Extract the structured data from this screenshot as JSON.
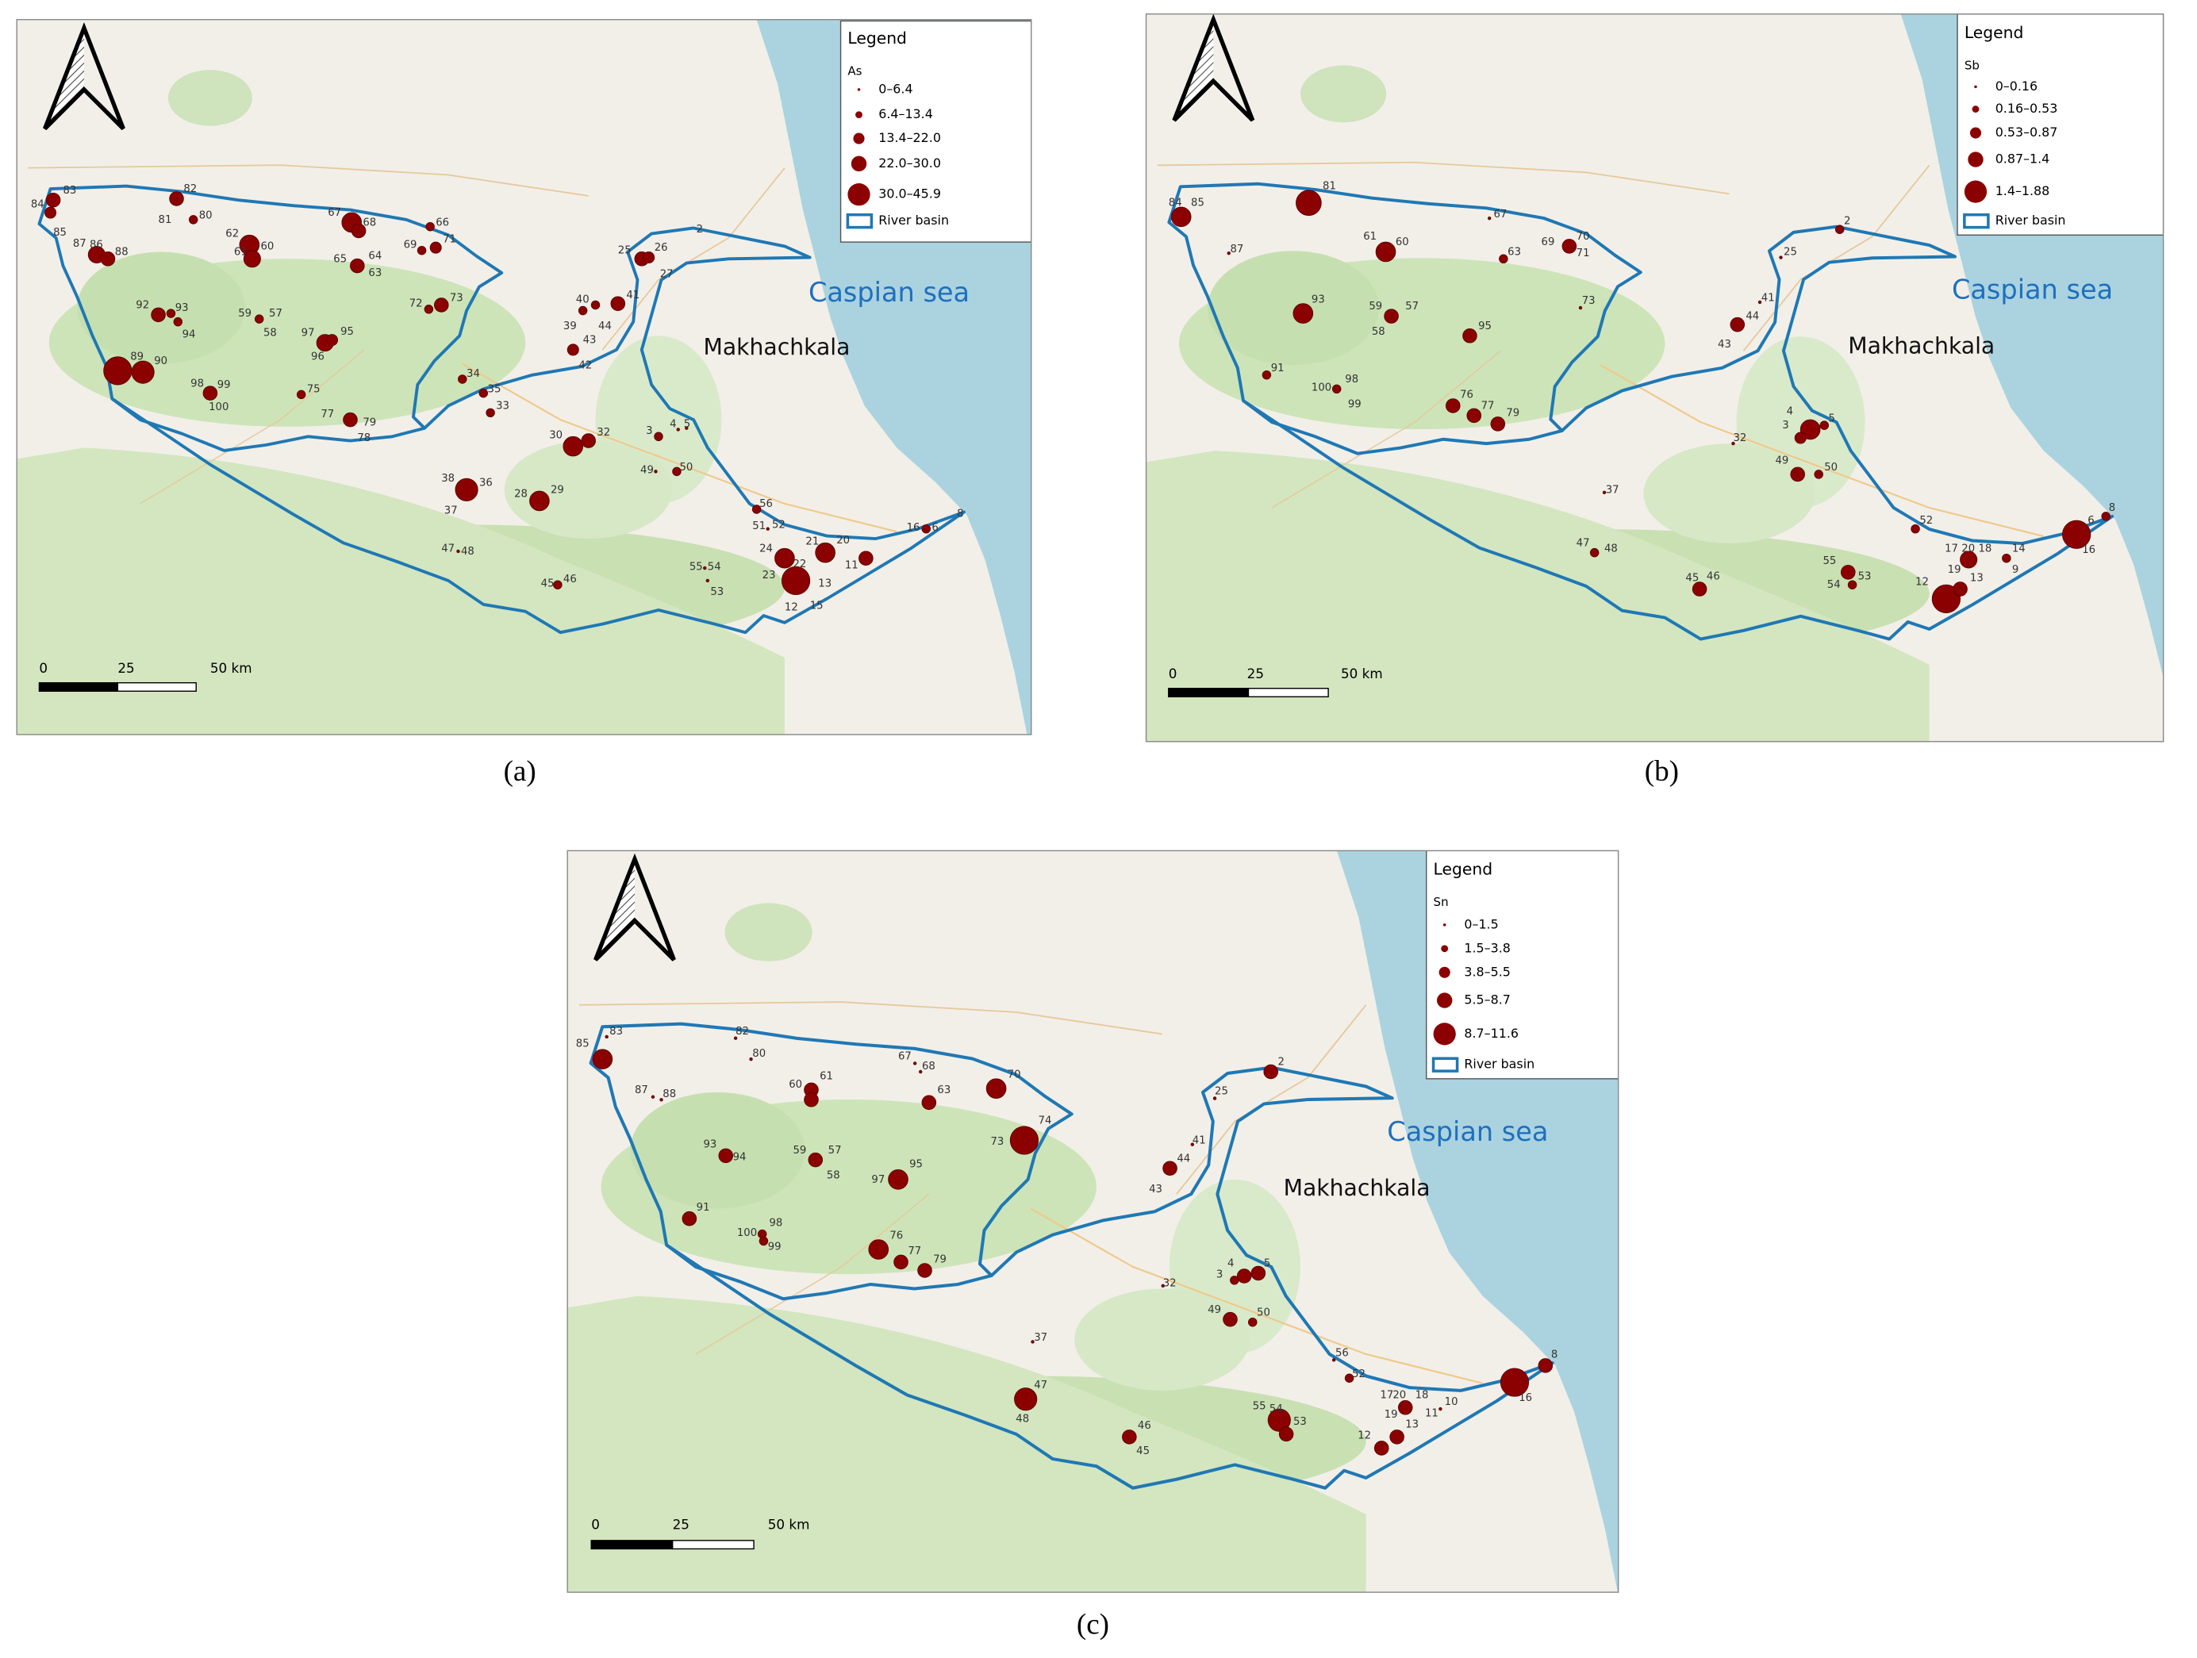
{
  "panels": [
    {
      "caption": "(a)",
      "legend": {
        "title": "Legend",
        "variable": "As",
        "classes": [
          "0–6.4",
          "6.4–13.4",
          "13.4–22.0",
          "22.0–30.0",
          "30.0–45.9"
        ],
        "basin": "River basin"
      },
      "sea_label": "Caspian sea",
      "city_label": "Makhachkala",
      "scale": [
        "0",
        "25",
        "50 km"
      ],
      "points": [
        "84",
        "83",
        "85",
        "86",
        "87",
        "88",
        "82",
        "81",
        "80",
        "62",
        "61",
        "60",
        "67",
        "68",
        "65",
        "64",
        "63",
        "66",
        "69",
        "71",
        "72",
        "73",
        "92",
        "93",
        "94",
        "59",
        "57",
        "58",
        "97",
        "95",
        "96",
        "89",
        "90",
        "98",
        "99",
        "100",
        "75",
        "77",
        "79",
        "78",
        "34",
        "35",
        "33",
        "30",
        "32",
        "38",
        "36",
        "37",
        "28",
        "29",
        "47",
        "48",
        "45",
        "46",
        "40",
        "41",
        "39",
        "44",
        "43",
        "42",
        "25",
        "26",
        "27",
        "3",
        "4",
        "5",
        "49",
        "50",
        "56",
        "51",
        "52",
        "24",
        "21",
        "22",
        "20",
        "23",
        "12",
        "13",
        "15",
        "11",
        "16",
        "6",
        "8",
        "55",
        "54",
        "53",
        "2"
      ]
    },
    {
      "caption": "(b)",
      "legend": {
        "title": "Legend",
        "variable": "Sb",
        "classes": [
          "0–0.16",
          "0.16–0.53",
          "0.53–0.87",
          "0.87–1.4",
          "1.4–1.88"
        ],
        "basin": "River basin"
      },
      "sea_label": "Caspian sea",
      "city_label": "Makhachkala",
      "scale": [
        "0",
        "25",
        "50 km"
      ],
      "points": [
        "84",
        "85",
        "81",
        "67",
        "70",
        "69",
        "71",
        "87",
        "61",
        "60",
        "63",
        "93",
        "59",
        "57",
        "58",
        "73",
        "95",
        "91",
        "100",
        "98",
        "99",
        "76",
        "77",
        "79",
        "2",
        "25",
        "41",
        "44",
        "43",
        "4",
        "3",
        "5",
        "32",
        "49",
        "50",
        "37",
        "47",
        "48",
        "52",
        "8",
        "6",
        "16",
        "17",
        "20",
        "18",
        "14",
        "9",
        "55",
        "54",
        "53",
        "12",
        "19",
        "13",
        "45",
        "46"
      ]
    },
    {
      "caption": "(c)",
      "legend": {
        "title": "Legend",
        "variable": "Sn",
        "classes": [
          "0–1.5",
          "1.5–3.8",
          "3.8–5.5",
          "5.5–8.7",
          "8.7–11.6"
        ],
        "basin": "River basin"
      },
      "sea_label": "Caspian sea",
      "city_label": "Makhachkala",
      "scale": [
        "0",
        "25",
        "50 km"
      ],
      "points": [
        "83",
        "85",
        "82",
        "80",
        "67",
        "68",
        "87",
        "88",
        "60",
        "61",
        "70",
        "63",
        "74",
        "73",
        "93",
        "94",
        "59",
        "57",
        "58",
        "95",
        "97",
        "91",
        "100",
        "98",
        "99",
        "76",
        "77",
        "79",
        "2",
        "25",
        "41",
        "44",
        "43",
        "32",
        "4",
        "3",
        "5",
        "49",
        "50",
        "37",
        "56",
        "52",
        "8",
        "16",
        "47",
        "48",
        "46",
        "45",
        "55",
        "54",
        "53",
        "17",
        "20",
        "18",
        "10",
        "11",
        "19",
        "13",
        "12"
      ]
    }
  ]
}
